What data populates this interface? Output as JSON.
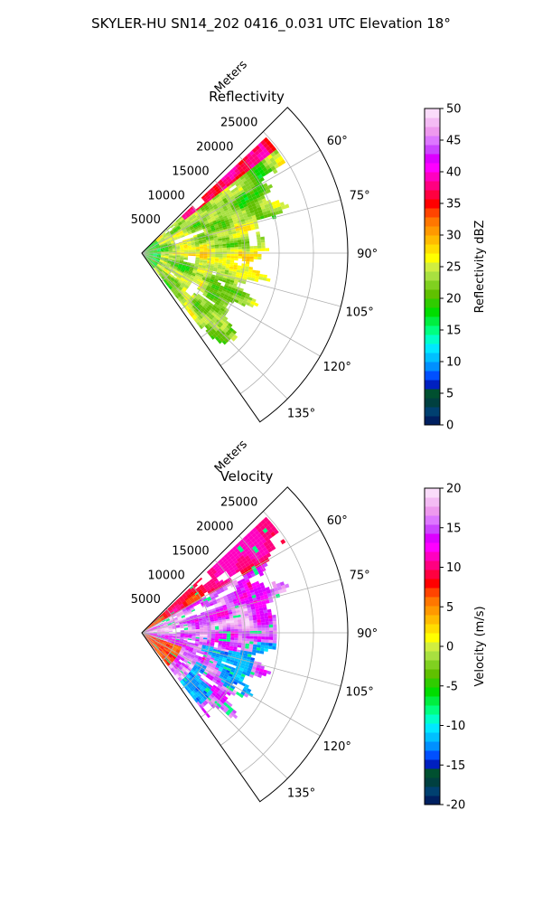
{
  "figure": {
    "suptitle": "SKYLER-HU  SN14_202  0416_0.031 UTC Elevation 18°"
  },
  "chart_data": [
    {
      "type": "heatmap",
      "projection": "polar-sector",
      "title": "Reflectivity",
      "radial_axis_label": "Meters",
      "radial_ticks": [
        "5000",
        "10000",
        "15000",
        "20000",
        "25000"
      ],
      "radial_range": [
        0,
        30000
      ],
      "azimuth_range_deg": [
        45,
        145
      ],
      "azimuth_ticks": [
        "60°",
        "75°",
        "90°",
        "105°",
        "120°",
        "135°"
      ],
      "grid": true,
      "colorbar": {
        "label": "Reflectivity dBZ",
        "range": [
          0,
          50
        ],
        "ticks": [
          "0",
          "5",
          "10",
          "15",
          "20",
          "25",
          "30",
          "35",
          "40",
          "45",
          "50"
        ],
        "colors": [
          "#002060",
          "#004070",
          "#004040",
          "#005030",
          "#0020c0",
          "#0050ff",
          "#0090ff",
          "#00c0ff",
          "#00e8ff",
          "#00ffc8",
          "#00ff80",
          "#00ee40",
          "#00dd00",
          "#30cc00",
          "#60c000",
          "#80d020",
          "#a8e040",
          "#d0ee40",
          "#ffff00",
          "#ffdd00",
          "#ffbb00",
          "#ff9900",
          "#ff7700",
          "#ff4400",
          "#ff0000",
          "#ff0040",
          "#ff0080",
          "#ff00c0",
          "#ff00ff",
          "#dd00ff",
          "#cc44ff",
          "#dd77ff",
          "#ee99ee",
          "#f4bbf4",
          "#fadcfa"
        ]
      }
    },
    {
      "type": "heatmap",
      "projection": "polar-sector",
      "title": "Velocity",
      "radial_axis_label": "Meters",
      "radial_ticks": [
        "5000",
        "10000",
        "15000",
        "20000",
        "25000"
      ],
      "radial_range": [
        0,
        30000
      ],
      "azimuth_range_deg": [
        45,
        145
      ],
      "azimuth_ticks": [
        "60°",
        "75°",
        "90°",
        "105°",
        "120°",
        "135°"
      ],
      "grid": true,
      "colorbar": {
        "label": "Velocity (m/s)",
        "range": [
          -20,
          20
        ],
        "ticks": [
          "-20",
          "-15",
          "-10",
          "-5",
          "0",
          "5",
          "10",
          "15",
          "20"
        ],
        "colors": [
          "#002060",
          "#004070",
          "#004040",
          "#005030",
          "#0020c0",
          "#0050ff",
          "#0090ff",
          "#00c0ff",
          "#00e8ff",
          "#00ffc8",
          "#00ff80",
          "#00ee40",
          "#00dd00",
          "#30cc00",
          "#60c000",
          "#80d020",
          "#a8e040",
          "#d0ee40",
          "#ffff00",
          "#ffdd00",
          "#ffbb00",
          "#ff9900",
          "#ff7700",
          "#ff4400",
          "#ff0000",
          "#ff0040",
          "#ff0080",
          "#ff00c0",
          "#ff00ff",
          "#dd00ff",
          "#cc44ff",
          "#dd77ff",
          "#ee99ee",
          "#f4bbf4",
          "#fadcfa"
        ]
      }
    }
  ]
}
